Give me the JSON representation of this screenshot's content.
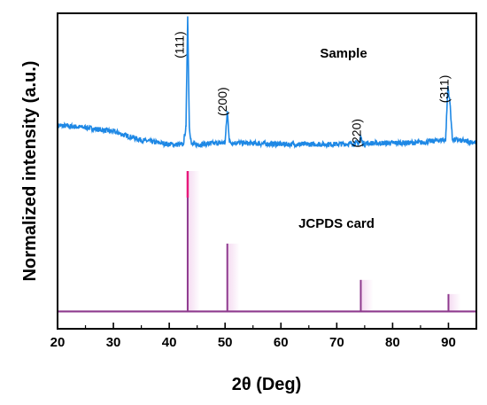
{
  "chart_data": {
    "type": "line",
    "xlabel": "2θ (Deg)",
    "ylabel": "Normalized intensity (a.u.)",
    "xlim": [
      20,
      95
    ],
    "ylim": [
      0,
      1
    ],
    "x_ticks": [
      20,
      30,
      40,
      50,
      60,
      70,
      80,
      90
    ],
    "grid": false,
    "annotations": [
      {
        "text": "Sample",
        "x": 84,
        "y": 0.93
      },
      {
        "text": "JCPDS card",
        "x": 76,
        "y": 0.47
      }
    ],
    "peak_labels": [
      {
        "text": "(111)",
        "x": 42.6,
        "y": 0.9
      },
      {
        "text": "(200)",
        "x": 50.3,
        "y": 0.72
      },
      {
        "text": "(220)",
        "x": 74.3,
        "y": 0.62
      },
      {
        "text": "(311)",
        "x": 90.0,
        "y": 0.76
      }
    ],
    "series": [
      {
        "color": "#1e88e5",
        "points": [
          [
            20,
            0.645
          ],
          [
            25,
            0.638
          ],
          [
            30,
            0.625
          ],
          [
            35,
            0.598
          ],
          [
            40,
            0.585
          ],
          [
            42.5,
            0.583
          ],
          [
            43.0,
            0.64
          ],
          [
            43.3,
            0.99
          ],
          [
            43.6,
            0.64
          ],
          [
            44.0,
            0.583
          ],
          [
            50.0,
            0.59
          ],
          [
            50.4,
            0.69
          ],
          [
            50.8,
            0.59
          ],
          [
            60,
            0.585
          ],
          [
            70,
            0.585
          ],
          [
            74.0,
            0.588
          ],
          [
            74.3,
            0.61
          ],
          [
            74.6,
            0.588
          ],
          [
            85,
            0.59
          ],
          [
            89.5,
            0.6
          ],
          [
            89.9,
            0.77
          ],
          [
            90.3,
            0.71
          ],
          [
            90.7,
            0.6
          ],
          [
            95,
            0.59
          ]
        ]
      },
      {
        "color": "#8e3a8e",
        "baseline": 0.055,
        "sticks": [
          {
            "x": 43.3,
            "y": 0.5
          },
          {
            "x": 50.4,
            "y": 0.27
          },
          {
            "x": 74.3,
            "y": 0.155
          },
          {
            "x": 90.0,
            "y": 0.11
          }
        ]
      }
    ]
  }
}
